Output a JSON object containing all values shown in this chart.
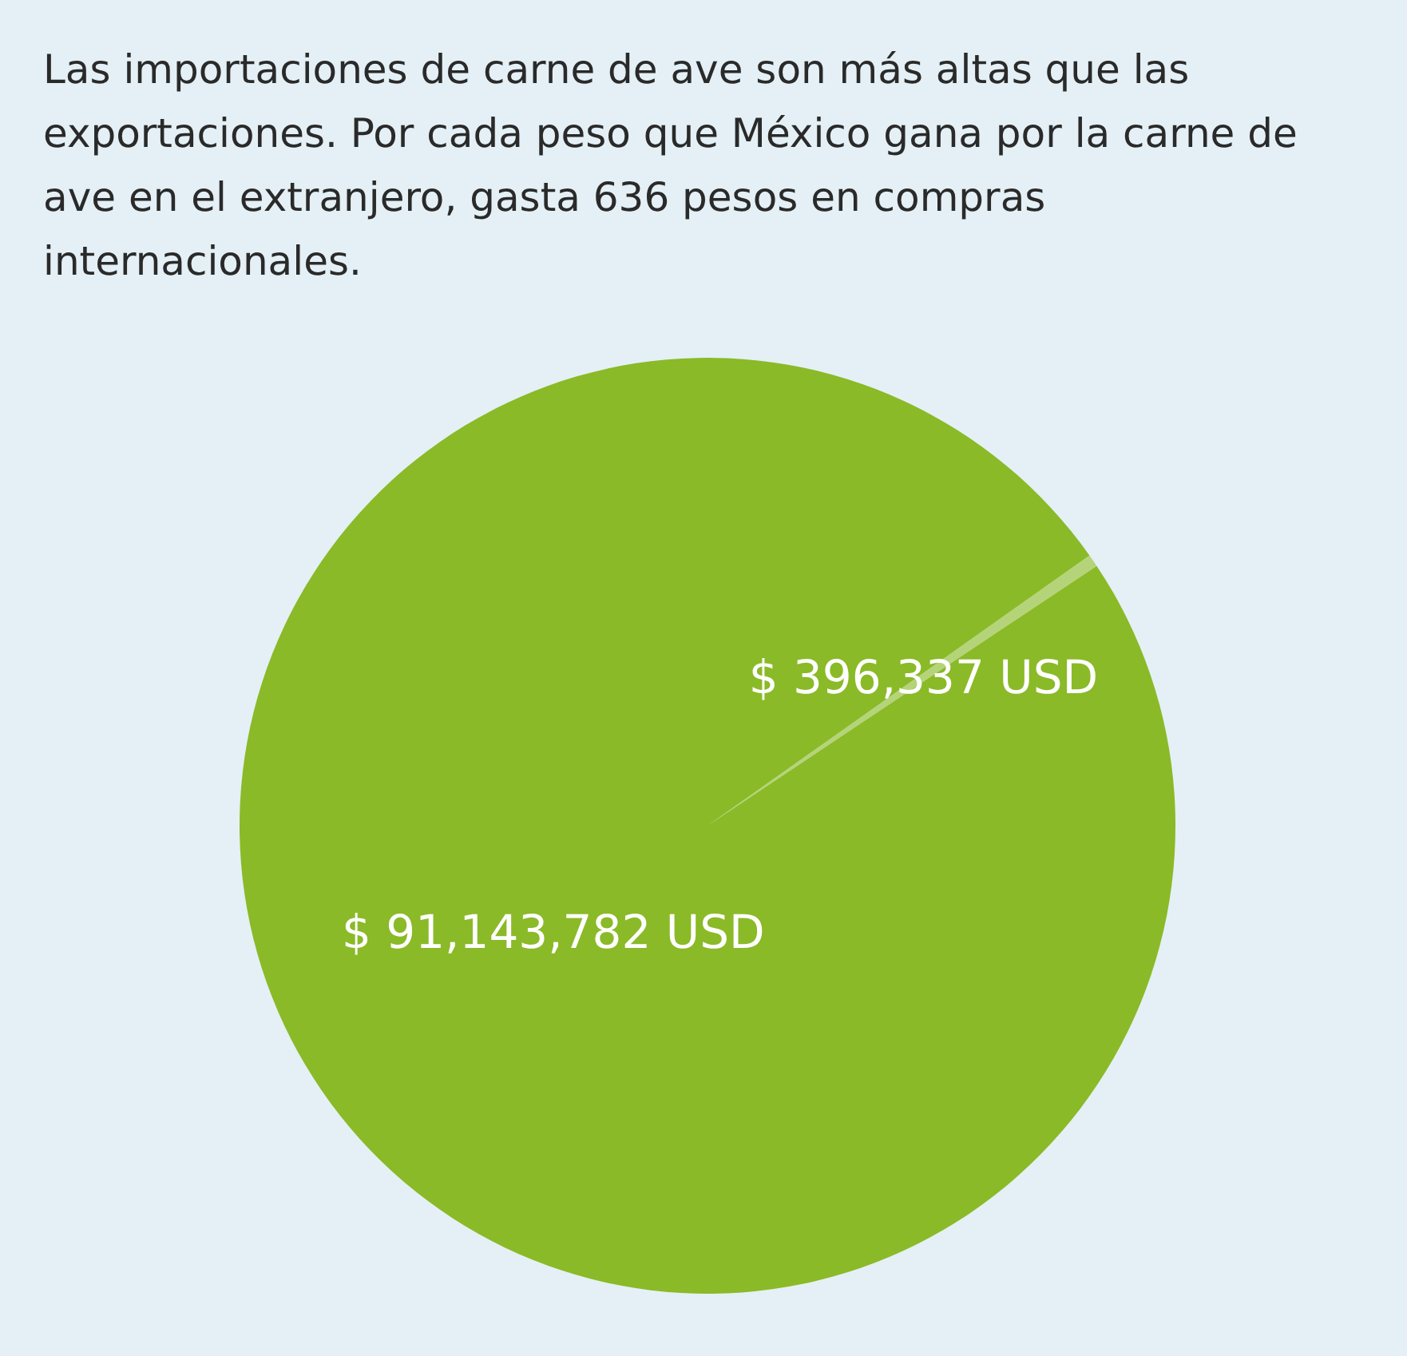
{
  "chart_data": {
    "type": "pie",
    "title": "Las importaciones de carne de ave son más altas que las exportaciones. Por cada peso que México gana por la carne de ave en el extranjero, gasta 636 pesos en compras internacionales.",
    "categories": [
      null,
      null
    ],
    "values": [
      396337,
      91143782
    ],
    "colors": [
      "#b5d47a",
      "#8aba27"
    ],
    "value_labels": [
      "$ 396,337 USD",
      "$ 91,143,782 USD"
    ]
  }
}
